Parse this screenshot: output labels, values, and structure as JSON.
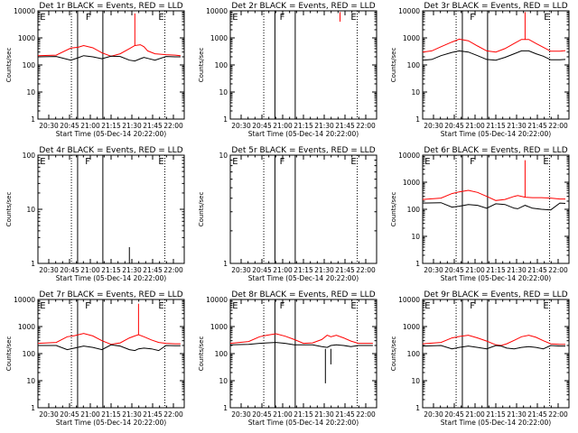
{
  "x_tick_labels": [
    "20:30",
    "20:45",
    "21:00",
    "21:15",
    "21:30",
    "21:45",
    "22:00"
  ],
  "x_axis_label": "Start Time (05-Dec-14 20:22:00)",
  "y_axis_label": "Counts/sec",
  "colors": {
    "events": "#000000",
    "lld": "#ff0000",
    "axes": "#000000"
  },
  "chart_data": [
    {
      "type": "line",
      "title": "Det 1r BLACK = Events, RED = LLD",
      "ylabel": "Counts/sec",
      "xlabel": "Start Time (05-Dec-14 20:22:00)",
      "xlim_minutes": [
        20,
        100
      ],
      "y_scale": "log",
      "ylim": [
        1,
        10000
      ],
      "y_ticks": [
        1,
        10,
        100,
        1000,
        10000
      ],
      "markers": [
        {
          "label": "E",
          "t": 20.6
        },
        {
          "label": "F",
          "t": 45.6
        },
        {
          "label": "E",
          "t": 85.4
        }
      ],
      "dotted_lines": [
        38.3,
        89.4
      ],
      "solid_lines": [
        41.7,
        55.5
      ],
      "series": [
        {
          "name": "LLD",
          "color": "#ff0000",
          "x": [
            20,
            30,
            38,
            42,
            45,
            50,
            55,
            60,
            65,
            70,
            73,
            76,
            78,
            80,
            84,
            90,
            95,
            98
          ],
          "y": [
            220,
            230,
            420,
            450,
            520,
            430,
            280,
            210,
            260,
            400,
            520,
            560,
            470,
            330,
            260,
            240,
            230,
            220
          ]
        },
        {
          "name": "Events",
          "color": "#000000",
          "x": [
            20,
            30,
            38,
            42,
            45,
            50,
            55,
            60,
            65,
            70,
            73,
            76,
            78,
            80,
            84,
            90,
            95,
            98
          ],
          "y": [
            200,
            205,
            150,
            185,
            220,
            200,
            170,
            210,
            205,
            150,
            140,
            170,
            190,
            175,
            150,
            205,
            200,
            200
          ]
        }
      ],
      "spikes": [
        {
          "series": "LLD",
          "t": 73,
          "y": 8000
        }
      ]
    },
    {
      "type": "line",
      "title": "Det 2r BLACK = Events, RED = LLD",
      "ylabel": "Counts/sec",
      "xlabel": "Start Time (05-Dec-14 20:22:00)",
      "xlim_minutes": [
        20,
        100
      ],
      "y_scale": "log",
      "ylim": [
        1,
        10000
      ],
      "y_ticks": [
        1,
        10,
        100,
        1000,
        10000
      ],
      "markers": [
        {
          "label": "E",
          "t": 20.6
        },
        {
          "label": "F",
          "t": 46.5
        },
        {
          "label": "E",
          "t": 85.4
        }
      ],
      "dotted_lines": [
        38.3,
        89.4
      ],
      "solid_lines": [
        44.4,
        55.5
      ],
      "series": [],
      "spikes": [
        {
          "series": "LLD",
          "t": 80,
          "y": 9000,
          "bottom": 4000
        }
      ]
    },
    {
      "type": "line",
      "title": "Det 3r BLACK = Events, RED = LLD",
      "ylabel": "Counts/sec",
      "xlabel": "Start Time (05-Dec-14 20:22:00)",
      "xlim_minutes": [
        20,
        100
      ],
      "y_scale": "log",
      "ylim": [
        1,
        10000
      ],
      "y_ticks": [
        1,
        10,
        100,
        1000,
        10000
      ],
      "markers": [
        {
          "label": "F",
          "t": 45.3
        },
        {
          "label": "E",
          "t": 85.8
        }
      ],
      "dotted_lines": [
        38.3,
        89.4
      ],
      "solid_lines": [
        41.7,
        55.5
      ],
      "series": [
        {
          "name": "LLD",
          "color": "#ff0000",
          "x": [
            20,
            25,
            30,
            36,
            40,
            45,
            50,
            55,
            60,
            65,
            70,
            74,
            78,
            82,
            86,
            90,
            95,
            98
          ],
          "y": [
            300,
            330,
            470,
            700,
            900,
            780,
            500,
            330,
            300,
            400,
            620,
            880,
            880,
            620,
            450,
            320,
            320,
            340
          ]
        },
        {
          "name": "Events",
          "color": "#000000",
          "x": [
            20,
            25,
            30,
            36,
            40,
            45,
            50,
            55,
            60,
            65,
            70,
            74,
            78,
            82,
            86,
            90,
            95,
            98
          ],
          "y": [
            150,
            160,
            220,
            290,
            330,
            300,
            220,
            160,
            150,
            190,
            260,
            330,
            330,
            260,
            210,
            155,
            155,
            160
          ]
        }
      ],
      "spikes": [
        {
          "series": "LLD",
          "t": 76,
          "y": 9000
        }
      ]
    },
    {
      "type": "line",
      "title": "Det 4r BLACK = Events, RED = LLD",
      "ylabel": "Counts/sec",
      "xlabel": "Start Time (05-Dec-14 20:22:00)",
      "xlim_minutes": [
        20,
        100
      ],
      "y_scale": "log",
      "ylim": [
        1,
        100
      ],
      "y_ticks": [
        1,
        10,
        100
      ],
      "markers": [
        {
          "label": "E",
          "t": 20.6
        },
        {
          "label": "F",
          "t": 45.3
        },
        {
          "label": "E",
          "t": 85.4
        }
      ],
      "dotted_lines": [
        38.3,
        89.4
      ],
      "solid_lines": [
        41.7,
        55.5
      ],
      "series": [],
      "spikes": [
        {
          "series": "Events",
          "t": 70,
          "y": 2,
          "bottom": 1
        }
      ]
    },
    {
      "type": "line",
      "title": "Det 5r BLACK = Events, RED = LLD",
      "ylabel": "Counts/sec",
      "xlabel": "Start Time (05-Dec-14 20:22:00)",
      "xlim_minutes": [
        20,
        100
      ],
      "y_scale": "log",
      "ylim": [
        1,
        10
      ],
      "y_ticks": [
        1,
        10
      ],
      "markers": [
        {
          "label": "E",
          "t": 20.6
        },
        {
          "label": "F",
          "t": 46.5
        },
        {
          "label": "E",
          "t": 85.4
        }
      ],
      "dotted_lines": [
        38.3,
        89.4
      ],
      "solid_lines": [
        44.4,
        55.5
      ],
      "series": [],
      "spikes": []
    },
    {
      "type": "line",
      "title": "Det 6r BLACK = Events, RED = LLD",
      "ylabel": "Counts/sec",
      "xlabel": "Start Time (05-Dec-14 20:22:00)",
      "xlim_minutes": [
        20,
        100
      ],
      "y_scale": "log",
      "ylim": [
        1,
        10000
      ],
      "y_ticks": [
        1,
        10,
        100,
        1000,
        10000
      ],
      "markers": [
        {
          "label": "E",
          "t": 20.6
        },
        {
          "label": "F",
          "t": 45.3
        },
        {
          "label": "E",
          "t": 85.4
        }
      ],
      "dotted_lines": [
        38.3,
        89.4
      ],
      "solid_lines": [
        41.7,
        55.5
      ],
      "series": [
        {
          "name": "LLD",
          "color": "#ff0000",
          "x": [
            20,
            30,
            36,
            40,
            45,
            50,
            55,
            60,
            65,
            70,
            72,
            76,
            80,
            85,
            90,
            95,
            98
          ],
          "y": [
            230,
            260,
            380,
            440,
            500,
            420,
            300,
            210,
            230,
            300,
            320,
            280,
            270,
            270,
            260,
            240,
            240
          ]
        },
        {
          "name": "Events",
          "color": "#000000",
          "x": [
            20,
            30,
            36,
            40,
            45,
            50,
            55,
            60,
            65,
            70,
            72,
            76,
            80,
            85,
            90,
            95,
            98
          ],
          "y": [
            170,
            175,
            120,
            130,
            150,
            140,
            110,
            160,
            150,
            110,
            105,
            140,
            110,
            100,
            95,
            170,
            165
          ]
        }
      ],
      "spikes": [
        {
          "series": "LLD",
          "t": 76,
          "y": 6500
        }
      ]
    },
    {
      "type": "line",
      "title": "Det 7r BLACK = Events, RED = LLD",
      "ylabel": "Counts/sec",
      "xlabel": "Start Time (05-Dec-14 20:22:00)",
      "xlim_minutes": [
        20,
        100
      ],
      "y_scale": "log",
      "ylim": [
        1,
        10000
      ],
      "y_ticks": [
        1,
        10,
        100,
        1000,
        10000
      ],
      "markers": [
        {
          "label": "E",
          "t": 20.6
        },
        {
          "label": "F",
          "t": 45.3
        },
        {
          "label": "E",
          "t": 85.4
        }
      ],
      "dotted_lines": [
        38.3,
        89.4
      ],
      "solid_lines": [
        41.7,
        55.5
      ],
      "series": [
        {
          "name": "LLD",
          "color": "#ff0000",
          "x": [
            20,
            30,
            36,
            40,
            45,
            50,
            55,
            60,
            65,
            70,
            73,
            75,
            78,
            82,
            86,
            90,
            95,
            98
          ],
          "y": [
            240,
            260,
            420,
            460,
            560,
            450,
            300,
            220,
            250,
            380,
            450,
            500,
            420,
            320,
            260,
            240,
            230,
            230
          ]
        },
        {
          "name": "Events",
          "color": "#000000",
          "x": [
            20,
            30,
            36,
            40,
            45,
            50,
            55,
            60,
            65,
            70,
            73,
            75,
            78,
            82,
            86,
            90,
            95,
            98
          ],
          "y": [
            200,
            200,
            140,
            160,
            190,
            170,
            140,
            210,
            190,
            140,
            130,
            150,
            160,
            150,
            130,
            200,
            195,
            195
          ]
        }
      ],
      "spikes": [
        {
          "series": "LLD",
          "t": 75,
          "y": 7000
        }
      ]
    },
    {
      "type": "line",
      "title": "Det 8r BLACK = Events, RED = LLD",
      "ylabel": "Counts/sec",
      "xlabel": "Start Time (05-Dec-14 20:22:00)",
      "xlim_minutes": [
        20,
        100
      ],
      "y_scale": "log",
      "ylim": [
        1,
        10000
      ],
      "y_ticks": [
        1,
        10,
        100,
        1000,
        10000
      ],
      "markers": [
        {
          "label": "E",
          "t": 20.6
        },
        {
          "label": "F",
          "t": 46.5
        },
        {
          "label": "E",
          "t": 85.4
        }
      ],
      "dotted_lines": [
        38.3,
        89.4
      ],
      "solid_lines": [
        44.4,
        55.5
      ],
      "series": [
        {
          "name": "LLD",
          "color": "#ff0000",
          "x": [
            20,
            30,
            36,
            40,
            45,
            50,
            55,
            60,
            65,
            70,
            73,
            75,
            78,
            82,
            86,
            90,
            95,
            98
          ],
          "y": [
            240,
            280,
            420,
            480,
            540,
            440,
            330,
            240,
            250,
            330,
            480,
            420,
            480,
            380,
            290,
            240,
            240,
            240
          ]
        },
        {
          "name": "Events",
          "color": "#000000",
          "x": [
            20,
            30,
            36,
            40,
            45,
            50,
            55,
            60,
            65,
            70,
            73,
            75,
            78,
            82,
            86,
            90,
            95,
            98
          ],
          "y": [
            210,
            220,
            240,
            250,
            260,
            240,
            210,
            210,
            210,
            180,
            170,
            200,
            210,
            200,
            180,
            200,
            200,
            200
          ]
        }
      ],
      "spikes": [
        {
          "series": "Events",
          "t": 72,
          "y": 150,
          "bottom": 8
        },
        {
          "series": "Events",
          "t": 75,
          "y": 150,
          "bottom": 40
        }
      ]
    },
    {
      "type": "line",
      "title": "Det 9r BLACK = Events, RED = LLD",
      "ylabel": "Counts/sec",
      "xlabel": "Start Time (05-Dec-14 20:22:00)",
      "xlim_minutes": [
        20,
        100
      ],
      "y_scale": "log",
      "ylim": [
        1,
        10000
      ],
      "y_ticks": [
        1,
        10,
        100,
        1000,
        10000
      ],
      "markers": [
        {
          "label": "E",
          "t": 20.6
        },
        {
          "label": "F",
          "t": 45.3
        },
        {
          "label": "E",
          "t": 85.4
        }
      ],
      "dotted_lines": [
        38.3,
        89.4
      ],
      "solid_lines": [
        41.7,
        55.5
      ],
      "series": [
        {
          "name": "LLD",
          "color": "#ff0000",
          "x": [
            20,
            30,
            36,
            40,
            45,
            50,
            55,
            60,
            63,
            66,
            70,
            74,
            78,
            82,
            86,
            90,
            95,
            98
          ],
          "y": [
            230,
            260,
            380,
            430,
            480,
            380,
            290,
            210,
            200,
            230,
            310,
            420,
            480,
            400,
            300,
            230,
            220,
            220
          ]
        },
        {
          "name": "Events",
          "color": "#000000",
          "x": [
            20,
            30,
            36,
            40,
            45,
            50,
            55,
            60,
            63,
            66,
            70,
            74,
            78,
            82,
            86,
            90,
            95,
            98
          ],
          "y": [
            190,
            200,
            150,
            170,
            190,
            170,
            150,
            200,
            190,
            160,
            150,
            170,
            180,
            170,
            150,
            200,
            190,
            190
          ]
        }
      ],
      "spikes": []
    }
  ]
}
